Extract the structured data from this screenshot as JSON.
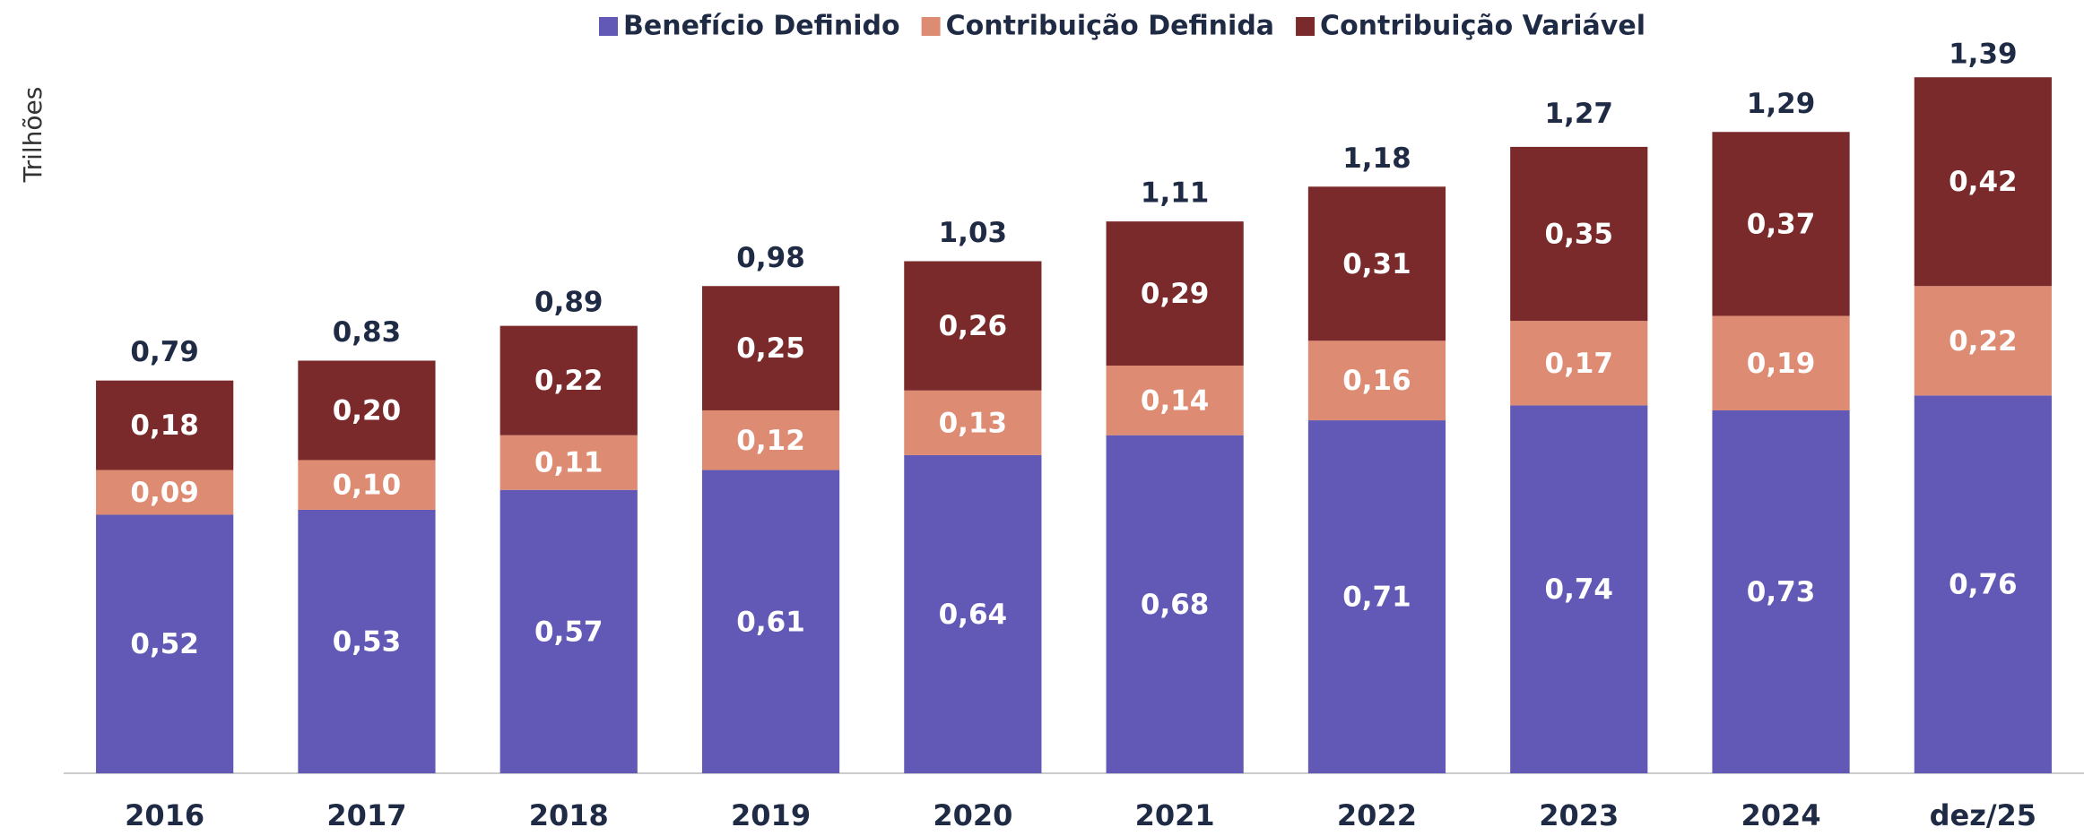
{
  "chart_data": {
    "type": "stacked_bar",
    "y_axis_label": "Trilhões",
    "categories": [
      "2016",
      "2017",
      "2018",
      "2019",
      "2020",
      "2021",
      "2022",
      "2023",
      "2024",
      "dez/25"
    ],
    "series": [
      {
        "name": "Benefício Definido",
        "color": "#6159b5",
        "values": [
          0.52,
          0.53,
          0.57,
          0.61,
          0.64,
          0.68,
          0.71,
          0.74,
          0.73,
          0.76
        ],
        "value_labels": [
          "0,52",
          "0,53",
          "0,57",
          "0,61",
          "0,64",
          "0,68",
          "0,71",
          "0,74",
          "0,73",
          "0,76"
        ]
      },
      {
        "name": "Contribuição Definida",
        "color": "#de8b73",
        "values": [
          0.09,
          0.1,
          0.11,
          0.12,
          0.13,
          0.14,
          0.16,
          0.17,
          0.19,
          0.22
        ],
        "value_labels": [
          "0,09",
          "0,10",
          "0,11",
          "0,12",
          "0,13",
          "0,14",
          "0,16",
          "0,17",
          "0,19",
          "0,22"
        ]
      },
      {
        "name": "Contribuição Variável",
        "color": "#7b2a2b",
        "values": [
          0.18,
          0.2,
          0.22,
          0.25,
          0.26,
          0.29,
          0.31,
          0.35,
          0.37,
          0.42
        ],
        "value_labels": [
          "0,18",
          "0,20",
          "0,22",
          "0,25",
          "0,26",
          "0,29",
          "0,31",
          "0,35",
          "0,37",
          "0,42"
        ]
      }
    ],
    "totals": [
      0.79,
      0.83,
      0.89,
      0.98,
      1.03,
      1.11,
      1.18,
      1.27,
      1.29,
      1.39
    ],
    "total_labels": [
      "0,79",
      "0,83",
      "0,89",
      "0,98",
      "1,03",
      "1,11",
      "1,18",
      "1,27",
      "1,29",
      "1,39"
    ],
    "ylim": [
      0,
      1.55
    ],
    "legend": "top"
  }
}
